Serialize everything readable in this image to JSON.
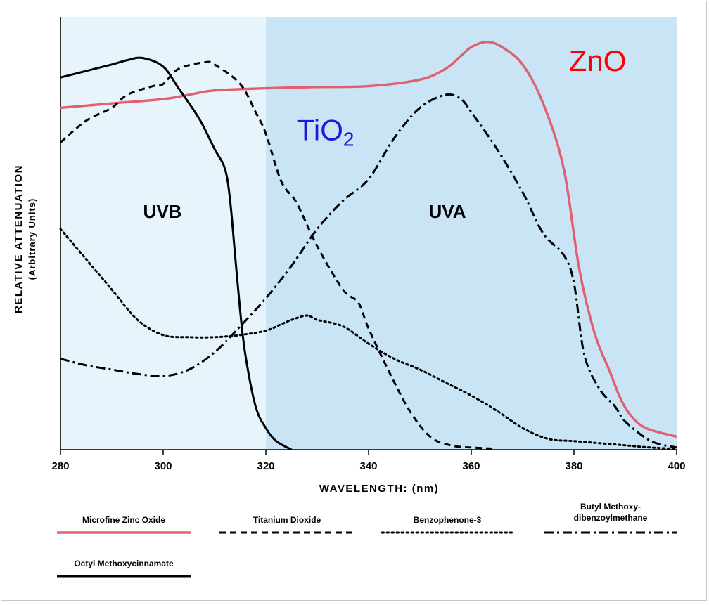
{
  "chart_data": {
    "type": "line",
    "xlabel": "WAVELENGTH: (nm)",
    "ylabel": "RELATIVE ATTENUATION",
    "ylabel_sub": "(Arbitrary Units)",
    "x_ticks": [
      "280",
      "300",
      "320",
      "340",
      "360",
      "380",
      "400"
    ],
    "xlim": [
      280,
      400
    ],
    "ylim": [
      0,
      100
    ],
    "grid": false,
    "regions": [
      {
        "label": "UVB",
        "from": 280,
        "to": 320,
        "color": "#e8f4fc"
      },
      {
        "label": "UVA",
        "from": 320,
        "to": 400,
        "color": "#c9e4f5"
      }
    ],
    "series": [
      {
        "name": "Microfine Zinc Oxide",
        "color": "#e06070",
        "style": "solid",
        "x": [
          280,
          290,
          300,
          305,
          310,
          320,
          330,
          340,
          350,
          355,
          358,
          360,
          363,
          366,
          370,
          374,
          378,
          381,
          384,
          387,
          389,
          391,
          394,
          400
        ],
        "y": [
          79,
          80,
          81,
          82,
          83,
          83.5,
          83.8,
          84,
          85.5,
          88,
          91,
          93,
          94.2,
          93,
          89,
          80,
          65,
          42,
          27,
          18,
          12,
          8,
          5,
          3
        ]
      },
      {
        "name": "Titanium Dioxide",
        "color": "#000000",
        "style": "dashed",
        "x": [
          280,
          285,
          290,
          293,
          298,
          300,
          303,
          308,
          310,
          315,
          318,
          320,
          323,
          326,
          330,
          335,
          338,
          340,
          344,
          348,
          352,
          356,
          360,
          365
        ],
        "y": [
          71,
          76,
          79,
          82,
          84,
          84.5,
          88,
          89.5,
          89,
          84.5,
          78,
          73,
          62,
          57,
          47,
          37,
          34,
          28,
          18,
          9,
          3,
          1,
          0.5,
          0.2
        ]
      },
      {
        "name": "Benzophenone-3",
        "color": "#000000",
        "style": "dotted",
        "x": [
          280,
          285,
          290,
          295,
          300,
          305,
          310,
          315,
          320,
          323,
          325,
          328,
          330,
          335,
          340,
          345,
          350,
          355,
          360,
          365,
          370,
          375,
          380,
          385,
          390,
          395,
          400
        ],
        "y": [
          51,
          44,
          37,
          30,
          26.5,
          26,
          26,
          26.5,
          27.5,
          29,
          30,
          31,
          30,
          28.5,
          24.5,
          21,
          18.5,
          15.5,
          12.5,
          9,
          5,
          2.5,
          2,
          1.5,
          1,
          0.5,
          0.2
        ]
      },
      {
        "name": "Butyl Methoxy-dibenzoylmethane",
        "color": "#000000",
        "style": "dashdot",
        "x": [
          280,
          285,
          290,
          295,
          300,
          305,
          310,
          315,
          320,
          325,
          330,
          335,
          340,
          345,
          350,
          355,
          358,
          360,
          365,
          370,
          374,
          378,
          380,
          382,
          385,
          388,
          390,
          395,
          400
        ],
        "y": [
          21,
          19.5,
          18.5,
          17.5,
          17,
          18.5,
          22.5,
          28.5,
          35,
          42.5,
          51,
          57.5,
          62.5,
          72,
          79,
          82,
          81,
          78,
          69.5,
          59.5,
          50,
          45,
          38.5,
          22,
          14,
          10,
          6.5,
          2,
          0.5
        ]
      },
      {
        "name": "Octyl Methoxycinnamate",
        "color": "#000000",
        "style": "solid",
        "x": [
          280,
          285,
          290,
          293,
          296,
          300,
          303,
          307,
          310,
          312,
          313,
          314,
          315,
          316,
          318,
          320,
          322,
          325
        ],
        "y": [
          86,
          87.5,
          89,
          90,
          90.5,
          88.5,
          83.5,
          76.5,
          69.5,
          65,
          58,
          45,
          32,
          22,
          10,
          5,
          2,
          0
        ]
      }
    ],
    "annotations": [
      {
        "text": "TiO",
        "subscript": "2",
        "x": 326,
        "y": 71.5
      },
      {
        "text": "ZnO",
        "x": 379,
        "y": 87.5
      }
    ]
  },
  "legend": [
    {
      "label": "Microfine Zinc Oxide",
      "style": "solid",
      "color": "#e06070"
    },
    {
      "label": "Titanium Dioxide",
      "style": "dashed",
      "color": "#000000"
    },
    {
      "label": "Benzophenone-3",
      "style": "dotted",
      "color": "#000000"
    },
    {
      "label": "Butyl Methoxy-",
      "label2": "dibenzoylmethane",
      "style": "dashdot",
      "color": "#000000"
    },
    {
      "label": "Octyl Methoxycinnamate",
      "style": "solid",
      "color": "#000000"
    }
  ]
}
